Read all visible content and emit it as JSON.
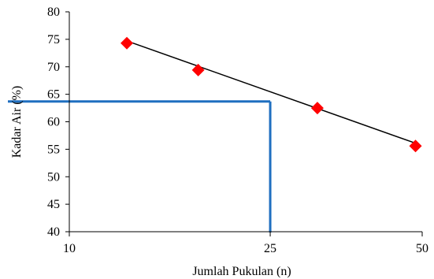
{
  "chart_data": {
    "type": "scatter",
    "x_scale": "log",
    "xlabel": "Jumlah Pukulan (n)",
    "ylabel": "Kadar Air (%)",
    "xlim": [
      10,
      50
    ],
    "ylim": [
      40,
      80
    ],
    "x_ticks": [
      10,
      25,
      50
    ],
    "y_ticks": [
      40,
      45,
      50,
      55,
      60,
      65,
      70,
      75,
      80
    ],
    "grid": false,
    "legend": "none",
    "points": [
      {
        "x": 13.0,
        "y": 74.3
      },
      {
        "x": 18.0,
        "y": 69.4
      },
      {
        "x": 31.0,
        "y": 62.5
      },
      {
        "x": 48.5,
        "y": 55.6
      }
    ],
    "trendline": {
      "x": [
        13.0,
        48.5
      ],
      "y": [
        74.7,
        56.1
      ]
    },
    "reference": {
      "x": 25,
      "y": 63.7
    },
    "colors": {
      "marker": "#ff0000",
      "trendline": "#000000",
      "reference": "#1f6fc0",
      "axis": "#000000"
    }
  }
}
